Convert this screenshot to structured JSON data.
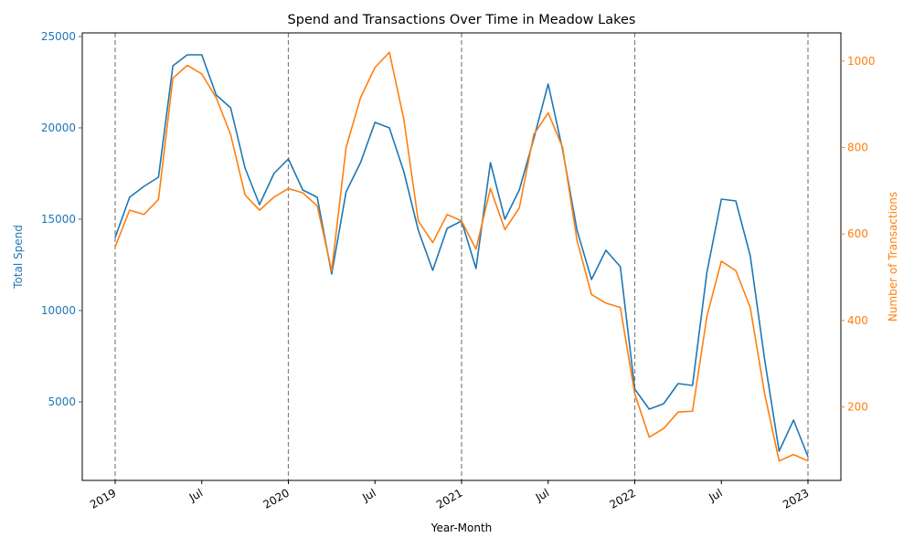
{
  "chart_data": {
    "type": "line",
    "title": "Spend and Transactions Over Time in Meadow Lakes",
    "xlabel": "Year-Month",
    "ylabel_left": "Total Spend",
    "ylabel_right": "Number of Transactions",
    "colors": {
      "spend": "#1f77b4",
      "transactions": "#ff7f0e",
      "vline": "#808080"
    },
    "x_tick_labels": [
      {
        "date": "2019-01",
        "label": "2019"
      },
      {
        "date": "2019-07",
        "label": "Jul"
      },
      {
        "date": "2020-01",
        "label": "2020"
      },
      {
        "date": "2020-07",
        "label": "Jul"
      },
      {
        "date": "2021-01",
        "label": "2021"
      },
      {
        "date": "2021-07",
        "label": "Jul"
      },
      {
        "date": "2022-01",
        "label": "2022"
      },
      {
        "date": "2022-07",
        "label": "Jul"
      },
      {
        "date": "2023-01",
        "label": "2023"
      }
    ],
    "left_ticks": [
      5000,
      10000,
      15000,
      20000,
      25000
    ],
    "right_ticks": [
      200,
      400,
      600,
      800,
      1000
    ],
    "ylim_left": [
      700,
      25200
    ],
    "ylim_right": [
      30,
      1065
    ],
    "vertical_lines": [
      "2019-01",
      "2020-01",
      "2021-01",
      "2022-01",
      "2023-01"
    ],
    "grid": false,
    "x": [
      "2019-01",
      "2019-02",
      "2019-03",
      "2019-04",
      "2019-05",
      "2019-06",
      "2019-07",
      "2019-08",
      "2019-09",
      "2019-10",
      "2019-11",
      "2019-12",
      "2020-01",
      "2020-02",
      "2020-03",
      "2020-04",
      "2020-05",
      "2020-06",
      "2020-07",
      "2020-08",
      "2020-09",
      "2020-10",
      "2020-11",
      "2020-12",
      "2021-01",
      "2021-02",
      "2021-03",
      "2021-04",
      "2021-05",
      "2021-06",
      "2021-07",
      "2021-08",
      "2021-09",
      "2021-10",
      "2021-11",
      "2021-12",
      "2022-01",
      "2022-02",
      "2022-03",
      "2022-04",
      "2022-05",
      "2022-06",
      "2022-07",
      "2022-08",
      "2022-09",
      "2022-10",
      "2022-11",
      "2022-12",
      "2023-01"
    ],
    "series": [
      {
        "name": "Total Spend",
        "axis": "left",
        "values": [
          14000,
          16200,
          16800,
          17300,
          23400,
          24000,
          24000,
          21800,
          21100,
          17800,
          15800,
          17500,
          18300,
          16600,
          16200,
          12000,
          16500,
          18100,
          20300,
          20000,
          17600,
          14400,
          12200,
          14500,
          14900,
          12300,
          18100,
          15000,
          16600,
          19400,
          22400,
          18800,
          14400,
          11700,
          13300,
          12400,
          5700,
          4600,
          4900,
          6000,
          5900,
          12100,
          16100,
          16000,
          13000,
          7300,
          2300,
          4000,
          2000
        ]
      },
      {
        "name": "Number of Transactions",
        "axis": "right",
        "values": [
          570,
          655,
          645,
          680,
          960,
          990,
          970,
          915,
          830,
          690,
          655,
          685,
          705,
          695,
          665,
          515,
          800,
          915,
          985,
          1020,
          865,
          630,
          580,
          645,
          630,
          565,
          705,
          610,
          660,
          830,
          880,
          800,
          585,
          460,
          440,
          430,
          230,
          130,
          150,
          188,
          190,
          410,
          537,
          515,
          430,
          230,
          75,
          90,
          75
        ]
      }
    ]
  }
}
